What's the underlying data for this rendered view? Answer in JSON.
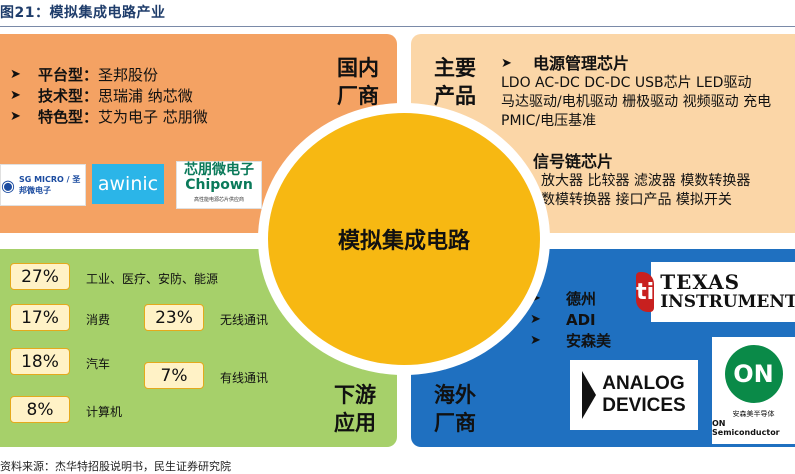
{
  "figure": {
    "title": "图21：模拟集成电路产业",
    "source": "资料来源：杰华特招股说明书，民生证券研究院"
  },
  "center": {
    "label": "模拟集成电路"
  },
  "quadrants": {
    "top_left": {
      "label": [
        "国内",
        "厂商"
      ],
      "items": [
        {
          "key": "平台型：",
          "value": "圣邦股份"
        },
        {
          "key": "技术型：",
          "value": "思瑞浦 纳芯微"
        },
        {
          "key": "特色型：",
          "value": "艾为电子 芯朋微"
        }
      ],
      "logos": {
        "sgmicro": "SG MICRO / 圣邦微电子",
        "awinic": "awinic",
        "chipown_cn": "芯朋微电子",
        "chipown_en": "Chipown",
        "chipown_sub": "高性能电源芯片供应商"
      }
    },
    "top_right": {
      "label": [
        "主要",
        "产品"
      ],
      "power": {
        "heading": "电源管理芯片",
        "lines": [
          "LDO AC-DC DC-DC USB芯片 LED驱动",
          "马达驱动/电机驱动 栅极驱动 视频驱动 充电",
          "PMIC/电压基准"
        ]
      },
      "signal": {
        "heading": "信号链芯片",
        "lines": [
          "放大器 比较器 滤波器 模数转换器",
          "数模转换器 接口产品 模拟开关"
        ]
      }
    },
    "bottom_left": {
      "label": [
        "下游",
        "应用"
      ],
      "shares": [
        {
          "pct": "27%",
          "name": "工业、医疗、安防、能源"
        },
        {
          "pct": "17%",
          "name": "消费"
        },
        {
          "pct": "18%",
          "name": "汽车"
        },
        {
          "pct": "8%",
          "name": "计算机"
        },
        {
          "pct": "23%",
          "name": "无线通讯"
        },
        {
          "pct": "7%",
          "name": "有线通讯"
        }
      ]
    },
    "bottom_right": {
      "label": [
        "海外",
        "厂商"
      ],
      "items": [
        "德州",
        "ADI",
        "安森美"
      ],
      "logos": {
        "ti_line1": "TEXAS",
        "ti_line2": "INSTRUMENTS",
        "adi_line1": "ANALOG",
        "adi_line2": "DEVICES",
        "on_mark": "ON",
        "on_cn": "安森美半导体",
        "on_en": "ON Semiconductor"
      }
    }
  },
  "colors": {
    "top_left": "#f4a263",
    "top_right": "#fbd6a7",
    "bottom_left": "#a6d06a",
    "bottom_right": "#1f70c0",
    "center": "#f7b812"
  }
}
